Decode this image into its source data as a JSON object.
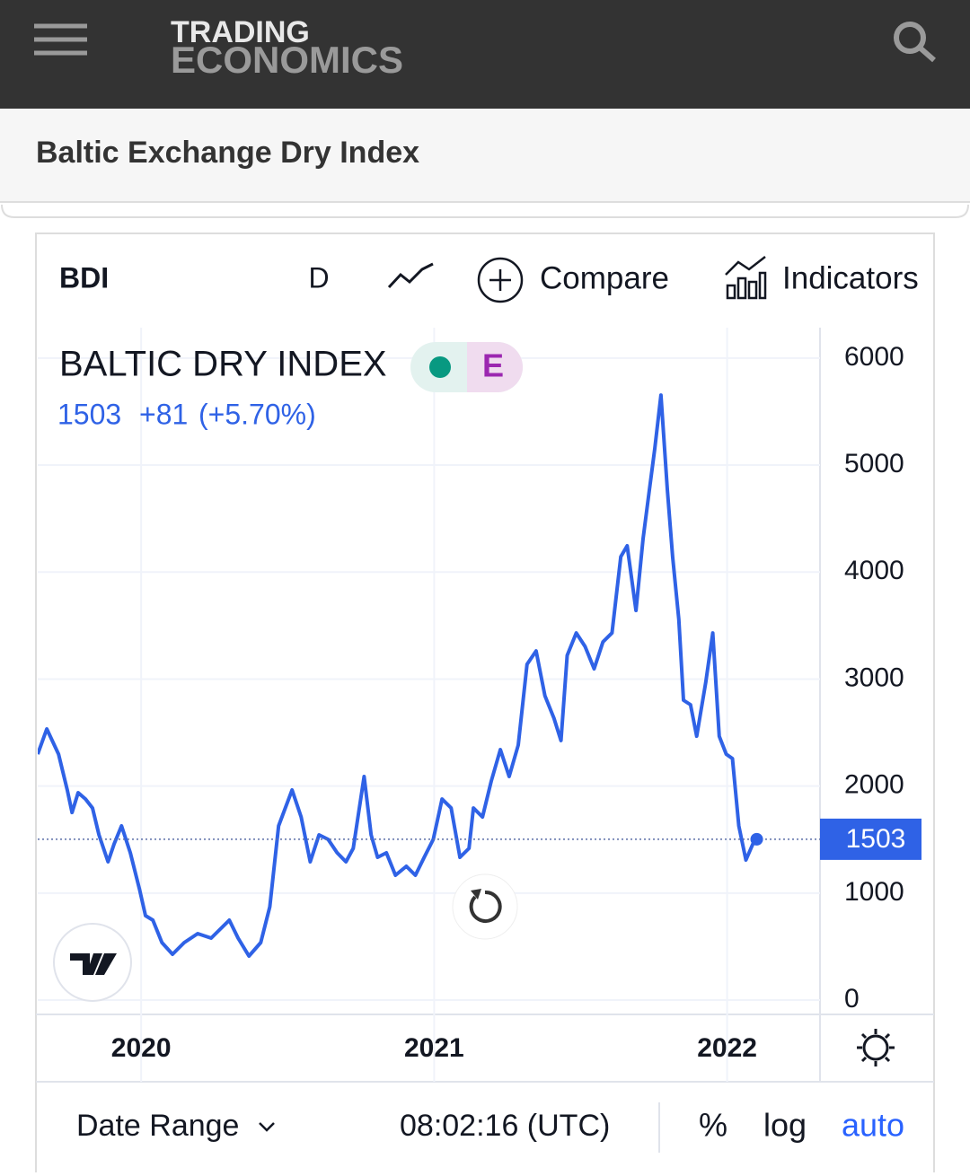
{
  "header": {
    "logo_top": "TRADING",
    "logo_bottom": "ECONOMICS"
  },
  "page_title": "Baltic Exchange Dry Index",
  "toolbar": {
    "symbol": "BDI",
    "interval": "D",
    "compare": "Compare",
    "indicators": "Indicators"
  },
  "chart_data": {
    "type": "line",
    "title": "BALTIC DRY INDEX",
    "badge": "E",
    "change": "+81",
    "change_pct": "(+5.70%)",
    "color": "#2f62e6",
    "grid": true,
    "log_scale": false,
    "x": [
      2019.647,
      2019.678,
      2019.718,
      2019.748,
      2019.764,
      2019.785,
      2019.81,
      2019.834,
      2019.856,
      2019.887,
      2019.908,
      2019.933,
      2019.963,
      2019.994,
      2020.015,
      2020.04,
      2020.071,
      2020.107,
      2020.147,
      2020.193,
      2020.239,
      2020.27,
      2020.301,
      2020.331,
      2020.368,
      2020.408,
      2020.439,
      2020.469,
      2020.515,
      2020.546,
      2020.577,
      2020.607,
      2020.638,
      2020.669,
      2020.699,
      2020.724,
      2020.761,
      2020.785,
      2020.807,
      2020.837,
      2020.868,
      2020.905,
      2020.936,
      2020.966,
      2020.997,
      2021.027,
      2021.058,
      2021.088,
      2021.119,
      2021.134,
      2021.165,
      2021.195,
      2021.226,
      2021.256,
      2021.287,
      2021.317,
      2021.348,
      2021.378,
      2021.409,
      2021.433,
      2021.454,
      2021.485,
      2021.515,
      2021.546,
      2021.576,
      2021.607,
      2021.637,
      2021.659,
      2021.689,
      2021.713,
      2021.735,
      2021.753,
      2021.774,
      2021.796,
      2021.814,
      2021.835,
      2021.851,
      2021.875,
      2021.896,
      2021.927,
      2021.951,
      2021.973,
      2021.997,
      2022.018,
      2022.04,
      2022.064,
      2022.088,
      2022.101
    ],
    "values": [
      2298,
      2534,
      2298,
      1963,
      1753,
      1938,
      1879,
      1795,
      1544,
      1292,
      1460,
      1628,
      1376,
      1040,
      789,
      747,
      537,
      428,
      537,
      621,
      579,
      663,
      747,
      579,
      411,
      537,
      872,
      1628,
      1963,
      1711,
      1292,
      1544,
      1502,
      1376,
      1292,
      1418,
      2089,
      1544,
      1334,
      1376,
      1166,
      1250,
      1166,
      1334,
      1502,
      1879,
      1795,
      1334,
      1418,
      1795,
      1711,
      2047,
      2341,
      2089,
      2383,
      3138,
      3263,
      2844,
      2634,
      2425,
      3221,
      3431,
      3305,
      3096,
      3347,
      3431,
      4144,
      4245,
      3641,
      4312,
      4773,
      5151,
      5654,
      4773,
      4144,
      3557,
      2802,
      2760,
      2466,
      2970,
      3431,
      2466,
      2298,
      2257,
      1628,
      1309,
      1460,
      1503
    ],
    "xlim": [
      2019.647,
      2022.317
    ],
    "xticks": [
      2020,
      2021,
      2022
    ],
    "ylim": [
      -134,
      6284
    ],
    "yticks": [
      0,
      1000,
      2000,
      3000,
      4000,
      5000,
      6000
    ]
  },
  "footer": {
    "date_range": "Date Range",
    "time": "08:02:16 (UTC)",
    "percent": "%",
    "log": "log",
    "auto": "auto"
  }
}
